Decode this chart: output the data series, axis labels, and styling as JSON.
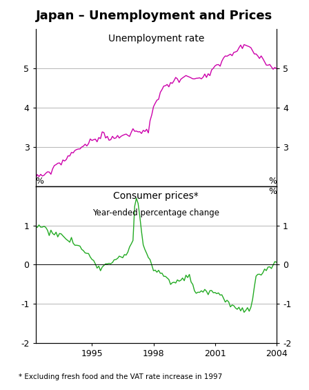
{
  "title": "Japan – Unemployment and Prices",
  "unemployment_label": "Unemployment rate",
  "cpi_label": "Consumer prices*",
  "cpi_sublabel": "Year-ended percentage change",
  "footnote": "* Excluding fresh food and the VAT rate increase in 1997",
  "unemployment_color": "#CC00AA",
  "cpi_color": "#22AA22",
  "unemployment_ylim": [
    2.0,
    6.0
  ],
  "unemployment_yticks": [
    3,
    4,
    5
  ],
  "cpi_ylim": [
    -2.0,
    2.0
  ],
  "cpi_yticks": [
    -2,
    -1,
    0,
    1
  ],
  "x_start_year": 1992.25,
  "x_end_year": 2004.0,
  "xtick_years": [
    1995,
    1998,
    2001,
    2004
  ],
  "ylabel_pct": "%"
}
